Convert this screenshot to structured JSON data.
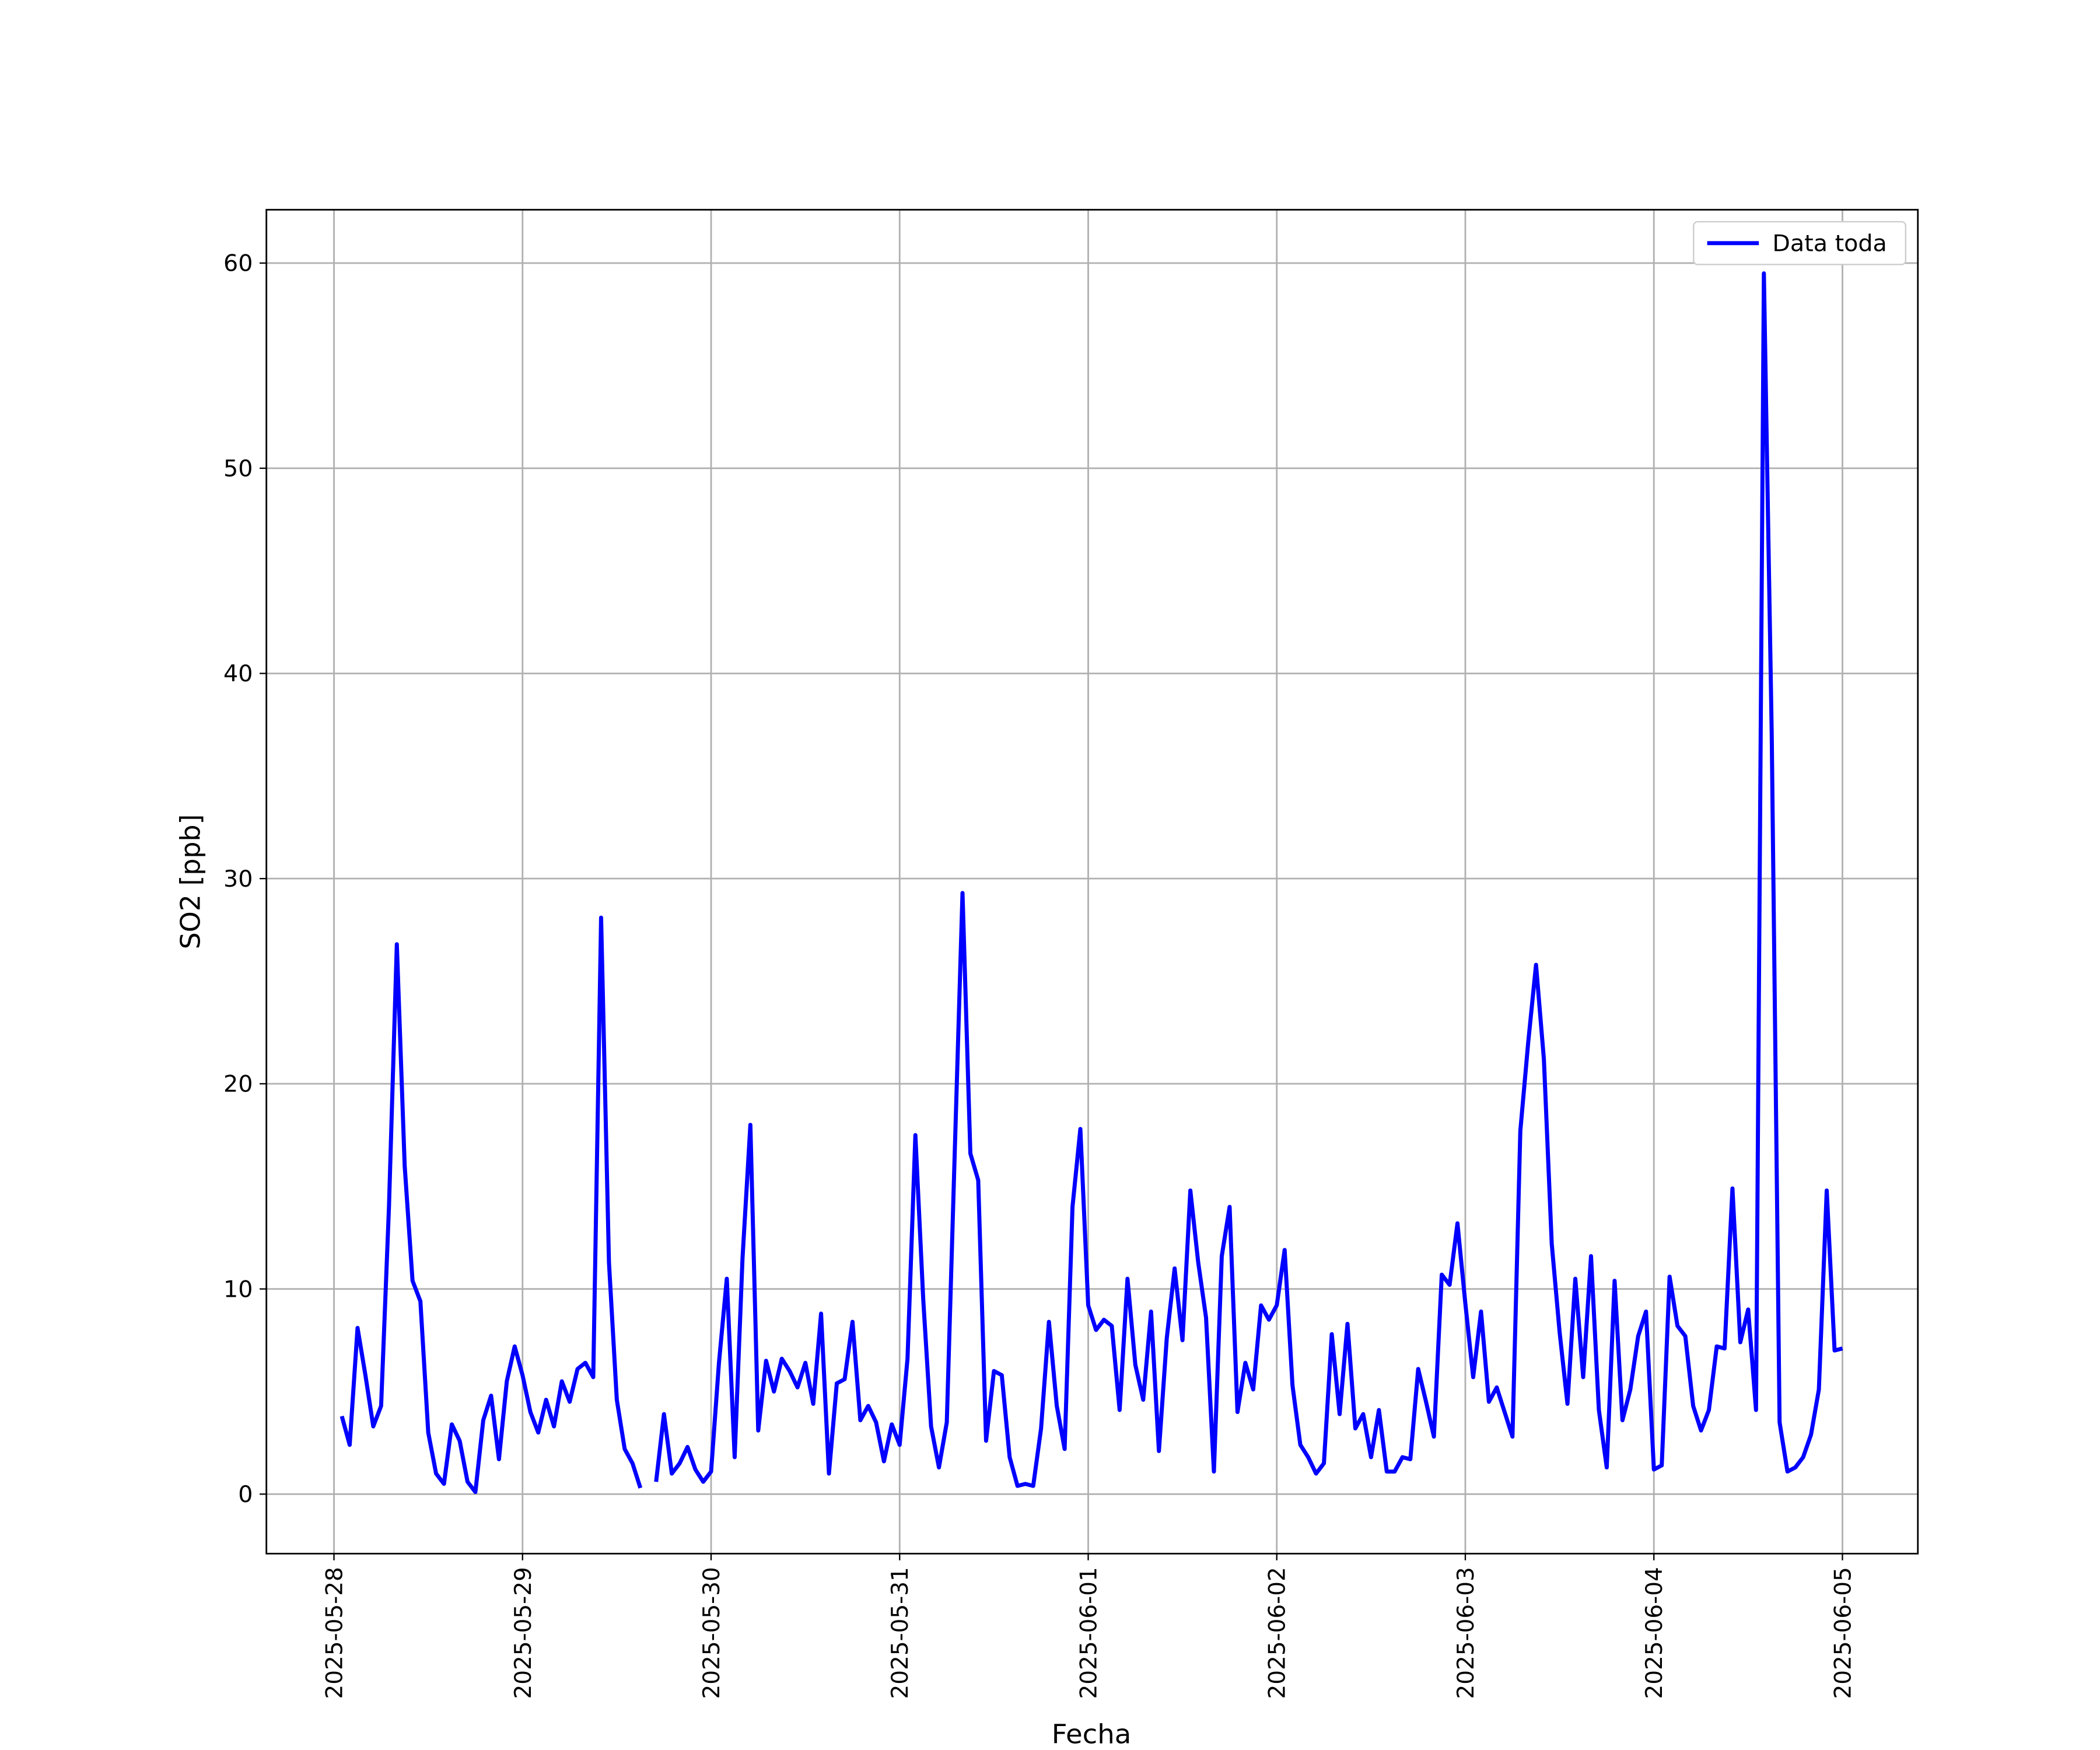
{
  "chart_data": {
    "type": "line",
    "xlabel": "Fecha",
    "ylabel": "SO2 [ppb]",
    "x": [
      1,
      2,
      3,
      4,
      5,
      6,
      7,
      8,
      9,
      10,
      11,
      12,
      13,
      14,
      15,
      16,
      17,
      18,
      19,
      20,
      21,
      22,
      23,
      24,
      25,
      26,
      27,
      28,
      29,
      30,
      31,
      32,
      33,
      34,
      35,
      36,
      37,
      38,
      39,
      40,
      41,
      42,
      43,
      44,
      45,
      46,
      47,
      48,
      49,
      50,
      51,
      52,
      53,
      54,
      55,
      56,
      57,
      58,
      59,
      60,
      61,
      62,
      63,
      64,
      65,
      66,
      67,
      68,
      69,
      70,
      71,
      72,
      73,
      74,
      75,
      76,
      77,
      78,
      79,
      80,
      81,
      82,
      83,
      84,
      85,
      86,
      87,
      88,
      89,
      90,
      91,
      92,
      93,
      94,
      95,
      96,
      97,
      98,
      99,
      100,
      101,
      102,
      103,
      104,
      105,
      106,
      107,
      108,
      109,
      110,
      111,
      112,
      113,
      114,
      115,
      116,
      117,
      118,
      119,
      120,
      121,
      122,
      123,
      124,
      125,
      126,
      127,
      128,
      129,
      130,
      131,
      132,
      133,
      134,
      135,
      136,
      137,
      138,
      139,
      140,
      141,
      142,
      143,
      144,
      145,
      146,
      147,
      148,
      149,
      150,
      151,
      152,
      153,
      154,
      155,
      156,
      157,
      158,
      159,
      160,
      161,
      162,
      163,
      164,
      165,
      166,
      167,
      168,
      169,
      170,
      171,
      172,
      173,
      174,
      175,
      176,
      177,
      178,
      179,
      180,
      181,
      182,
      183,
      184,
      185,
      186,
      187,
      188,
      189,
      190,
      191,
      192
    ],
    "series": [
      {
        "name": "Data toda",
        "color": "#0000ff",
        "values": [
          3.8,
          2.4,
          8.1,
          5.8,
          3.3,
          4.3,
          14,
          26.8,
          16,
          10.4,
          9.4,
          3,
          1,
          0.5,
          3.4,
          2.6,
          0.6,
          0.1,
          3.6,
          4.8,
          1.7,
          5.5,
          7.2,
          5.8,
          4,
          3,
          4.6,
          3.3,
          5.5,
          4.5,
          6.1,
          6.4,
          5.7,
          28.1,
          11.3,
          4.6,
          2.2,
          1.5,
          0.3,
          null,
          0.6,
          3.9,
          1,
          1.5,
          2.3,
          1.2,
          0.6,
          1.1,
          6.4,
          10.5,
          1.8,
          11.5,
          18,
          3.1,
          6.5,
          5,
          6.6,
          6,
          5.2,
          6.4,
          4.4,
          8.8,
          1,
          5.4,
          5.6,
          8.4,
          3.6,
          4.3,
          3.5,
          1.6,
          3.4,
          2.4,
          6.6,
          17.5,
          9.5,
          3.3,
          1.3,
          3.5,
          16.5,
          29.3,
          16.6,
          15.3,
          2.6,
          6,
          5.8,
          1.8,
          0.4,
          0.5,
          0.4,
          3.2,
          8.4,
          4.3,
          2.2,
          14,
          17.8,
          9.2,
          8,
          8.5,
          8.2,
          4.1,
          10.5,
          6.3,
          4.6,
          8.9,
          2.1,
          7.6,
          11,
          7.5,
          14.8,
          11.3,
          8.6,
          1.1,
          11.6,
          14,
          4,
          6.4,
          5.1,
          9.2,
          8.5,
          9.2,
          11.9,
          5.3,
          2.4,
          1.8,
          1,
          1.5,
          7.8,
          3.9,
          8.3,
          3.2,
          3.9,
          1.8,
          4.1,
          1.1,
          1.1,
          1.8,
          1.7,
          6.1,
          4.5,
          2.8,
          10.7,
          10.2,
          13.2,
          9.3,
          5.7,
          8.9,
          4.5,
          5.2,
          4,
          2.8,
          17.7,
          22,
          25.8,
          21.2,
          12.2,
          7.9,
          4.4,
          10.5,
          5.7,
          11.6,
          4.1,
          1.3,
          10.4,
          3.6,
          5.1,
          7.7,
          8.9,
          1.2,
          1.4,
          10.6,
          8.2,
          7.7,
          4.3,
          3.1,
          4.1,
          7.2,
          7.1,
          14.9,
          7.4,
          9,
          4.1,
          59.5,
          37,
          3.5,
          1.1,
          1.3,
          1.8,
          2.9,
          5.1,
          14.8,
          7,
          7.1
        ]
      }
    ],
    "xlim": [
      -8.6,
      201.6
    ],
    "xticks": [
      {
        "value": 0,
        "label": "2025-05-28"
      },
      {
        "value": 24,
        "label": "2025-05-29"
      },
      {
        "value": 48,
        "label": "2025-05-30"
      },
      {
        "value": 72,
        "label": "2025-05-31"
      },
      {
        "value": 96,
        "label": "2025-06-01"
      },
      {
        "value": 120,
        "label": "2025-06-02"
      },
      {
        "value": 144,
        "label": "2025-06-03"
      },
      {
        "value": 168,
        "label": "2025-06-04"
      },
      {
        "value": 192,
        "label": "2025-06-05"
      }
    ],
    "ylim": [
      -2.9,
      62.6
    ],
    "yticks": [
      0,
      10,
      20,
      30,
      40,
      50,
      60
    ],
    "grid": true,
    "legend": "upper right"
  }
}
